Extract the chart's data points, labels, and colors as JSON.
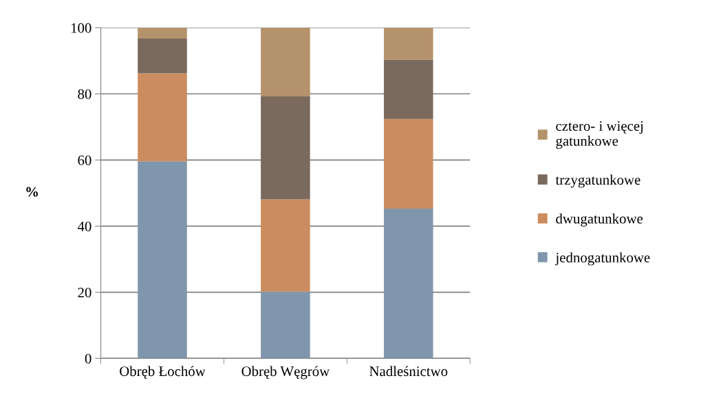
{
  "chart_data": {
    "type": "bar",
    "stacked": true,
    "ylabel": "%",
    "categories": [
      "Obręb Łochów",
      "Obręb Węgrów",
      "Nadleśnictwo"
    ],
    "series": [
      {
        "name": "jednogatunkowe",
        "color": "#7f96ac",
        "values": [
          59.6,
          20.2,
          45.3
        ]
      },
      {
        "name": "dwugatunkowe",
        "color": "#cb8c5f",
        "values": [
          26.6,
          27.9,
          27.1
        ]
      },
      {
        "name": "trzygatunkowe",
        "color": "#7a695d",
        "values": [
          10.5,
          31.1,
          17.9
        ]
      },
      {
        "name": "cztero- i więcej gatunkowe",
        "color": "#b4926b",
        "values": [
          3.3,
          20.8,
          9.7
        ]
      }
    ],
    "ylim": [
      0,
      100
    ],
    "yticks": [
      0,
      20,
      40,
      60,
      80,
      100
    ],
    "grid": "y",
    "legend": "right"
  }
}
